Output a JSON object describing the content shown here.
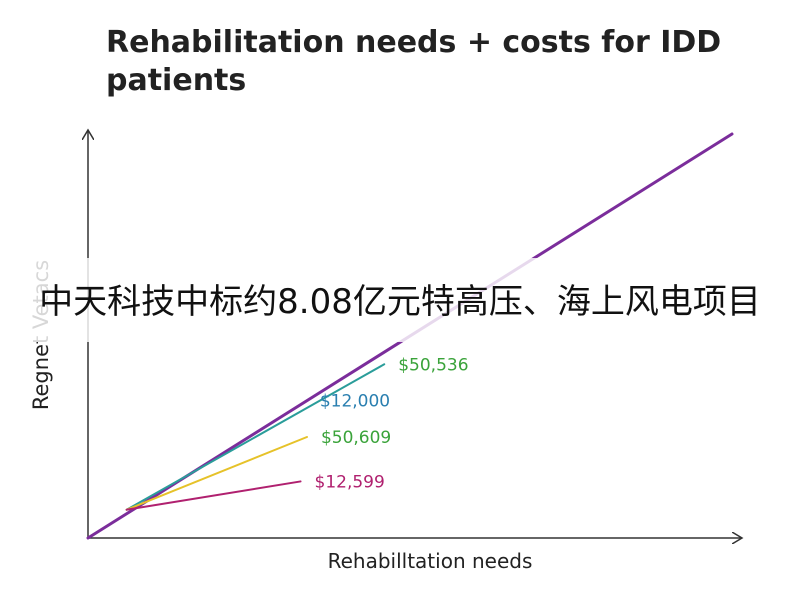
{
  "chart_data": {
    "type": "line",
    "title": "Rehabilitation needs + costs for IDD patients",
    "xlabel": "Rehabilltation needs",
    "ylabel": "Regnet Vetacs",
    "grid": false,
    "legend": "none",
    "series": [
      {
        "x": [
          0,
          1
        ],
        "y": [
          0,
          1
        ],
        "color": "#7b2d9b"
      },
      {
        "x": [
          0.06,
          0.46
        ],
        "y": [
          0.07,
          0.43
        ],
        "color": "#2a9d9a",
        "label": "$50,536",
        "label_color": "#3aa33a"
      },
      {
        "x": [
          0.06,
          0.34
        ],
        "y": [
          0.07,
          0.25
        ],
        "color": "#e6c229",
        "label": "$50,609",
        "label_color": "#3aa33a"
      },
      {
        "x": [
          0.06,
          0.33
        ],
        "y": [
          0.07,
          0.14
        ],
        "color": "#b0206f",
        "label": "$12,599",
        "label_color": "#b0206f"
      }
    ],
    "annotations": [
      {
        "text": "$12,000",
        "x": 0.36,
        "y": 0.34,
        "color": "#2a7fb0"
      }
    ]
  },
  "banner": {
    "text": "中天科技中标约8.08亿元特高压、海上风电项目"
  }
}
